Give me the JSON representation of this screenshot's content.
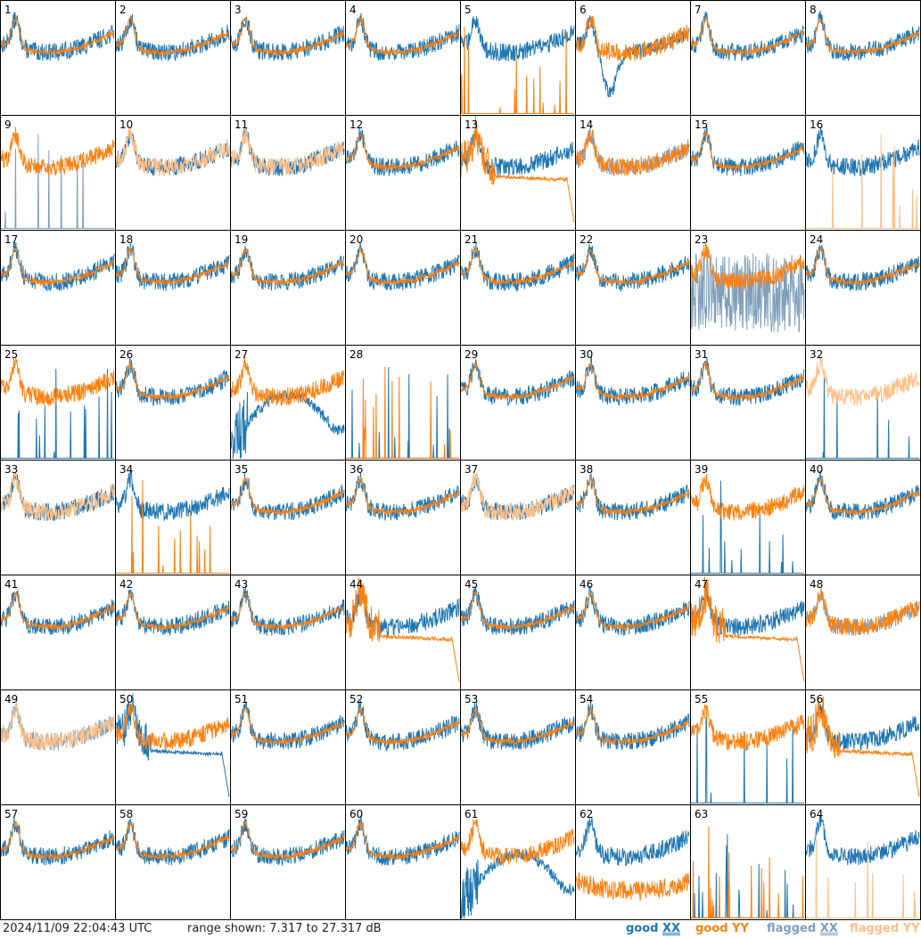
{
  "chart_data": {
    "type": "line",
    "layout": "8x8 grid of small multiples, one panel per antenna, no axes or tick labels",
    "x_axis": "frequency channel (not labeled)",
    "y_axis": "power in dB, range shown 7.317 to 27.317",
    "ylim": [
      7.317,
      27.317
    ],
    "panels": [
      "1",
      "2",
      "3",
      "4",
      "5",
      "6",
      "7",
      "8",
      "9",
      "10",
      "11",
      "12",
      "13",
      "14",
      "15",
      "16",
      "17",
      "18",
      "19",
      "20",
      "21",
      "22",
      "23",
      "24",
      "25",
      "26",
      "27",
      "28",
      "29",
      "30",
      "31",
      "32",
      "33",
      "34",
      "35",
      "36",
      "37",
      "38",
      "39",
      "40",
      "41",
      "42",
      "43",
      "44",
      "45",
      "46",
      "47",
      "48",
      "49",
      "50",
      "51",
      "52",
      "53",
      "54",
      "55",
      "56",
      "57",
      "58",
      "59",
      "60",
      "61",
      "62",
      "63",
      "64"
    ],
    "series": [
      {
        "name": "good XX",
        "color": "#1f77b4"
      },
      {
        "name": "good YY",
        "color": "#ff7f0e"
      },
      {
        "name": "flagged XX",
        "color": "#7f9fba"
      },
      {
        "name": "flagged YY",
        "color": "#ffbf87"
      }
    ],
    "panel_states": {
      "5": {
        "xx": "normal",
        "yy": "spiky-low"
      },
      "6": {
        "xx": "dip",
        "yy": "normal"
      },
      "9": {
        "xx": "flag-spiky",
        "yy": "normal"
      },
      "10": {
        "xx": "normal",
        "yy": "flag-normal"
      },
      "11": {
        "xx": "normal",
        "yy": "flag-normal"
      },
      "13": {
        "xx": "normal",
        "yy": "decay"
      },
      "14": {
        "xx": "flag-normal",
        "yy": "normal"
      },
      "16": {
        "xx": "normal",
        "yy": "flag-spiky"
      },
      "23": {
        "xx": "flag-noise",
        "yy": "normal"
      },
      "25": {
        "xx": "spiky-low",
        "yy": "normal"
      },
      "27": {
        "xx": "hump",
        "yy": "normal"
      },
      "28": {
        "xx": "spiky-low",
        "yy": "spiky-low"
      },
      "32": {
        "xx": "spiky-low",
        "yy": "flag-normal"
      },
      "33": {
        "xx": "normal",
        "yy": "flag-normal"
      },
      "34": {
        "xx": "normal",
        "yy": "spiky-low"
      },
      "37": {
        "xx": "normal",
        "yy": "flag-normal"
      },
      "39": {
        "xx": "spiky-low",
        "yy": "normal"
      },
      "44": {
        "xx": "normal",
        "yy": "decay"
      },
      "47": {
        "xx": "normal",
        "yy": "decay"
      },
      "48": {
        "xx": "flag-normal",
        "yy": "normal"
      },
      "49": {
        "xx": "flag-normal",
        "yy": "flag-normal"
      },
      "50": {
        "xx": "decay",
        "yy": "normal"
      },
      "55": {
        "xx": "spiky-low",
        "yy": "normal"
      },
      "56": {
        "xx": "normal",
        "yy": "decay"
      },
      "61": {
        "xx": "hump",
        "yy": "normal"
      },
      "62": {
        "xx": "normal",
        "yy": "low"
      },
      "63": {
        "xx": "spiky-low",
        "yy": "spiky-low"
      },
      "64": {
        "xx": "normal",
        "yy": "flag-spiky"
      }
    }
  },
  "footer": {
    "timestamp": "2024/11/09 22:04:43 UTC",
    "range_text": "range shown: 7.317 to 27.317 dB",
    "legend": [
      {
        "word": "good",
        "pol": "XX",
        "color": "#1f77b4"
      },
      {
        "word": "good",
        "pol": "YY",
        "color": "#ff7f0e"
      },
      {
        "word": "flagged",
        "pol": "XX",
        "color": "#7f9fba"
      },
      {
        "word": "flagged",
        "pol": "YY",
        "color": "#ffbf87"
      }
    ]
  }
}
